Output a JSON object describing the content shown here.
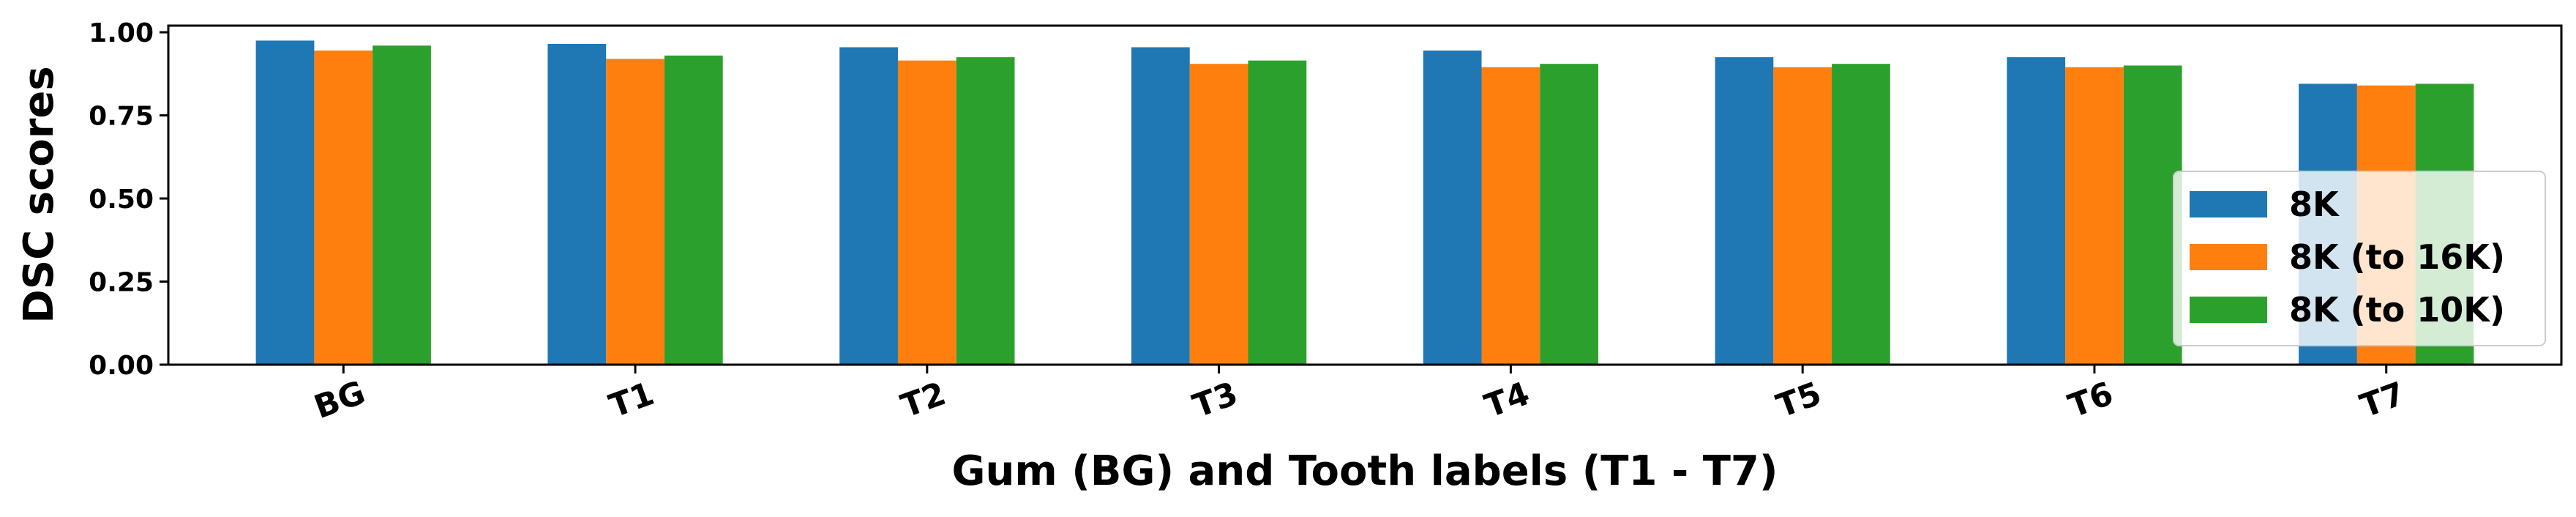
{
  "chart_data": {
    "type": "bar",
    "categories": [
      "BG",
      "T1",
      "T2",
      "T3",
      "T4",
      "T5",
      "T6",
      "T7"
    ],
    "series": [
      {
        "name": "8K",
        "color": "#1f77b4",
        "values": [
          0.975,
          0.965,
          0.955,
          0.955,
          0.945,
          0.925,
          0.925,
          0.845
        ]
      },
      {
        "name": "8K (to 16K)",
        "color": "#ff7f0e",
        "values": [
          0.945,
          0.92,
          0.915,
          0.905,
          0.895,
          0.895,
          0.895,
          0.84
        ]
      },
      {
        "name": "8K (to 10K)",
        "color": "#2ca02c",
        "values": [
          0.96,
          0.93,
          0.925,
          0.915,
          0.905,
          0.905,
          0.9,
          0.845
        ]
      }
    ],
    "title": "",
    "xlabel": "Gum (BG) and Tooth labels (T1 - T7)",
    "ylabel": "DSC scores",
    "ylim": [
      0,
      1.02
    ],
    "yticks": [
      0.0,
      0.25,
      0.5,
      0.75,
      1.0
    ],
    "ytick_labels": [
      "0.00",
      "0.25",
      "0.50",
      "0.75",
      "1.00"
    ],
    "grid": false,
    "legend_position": "lower right"
  }
}
